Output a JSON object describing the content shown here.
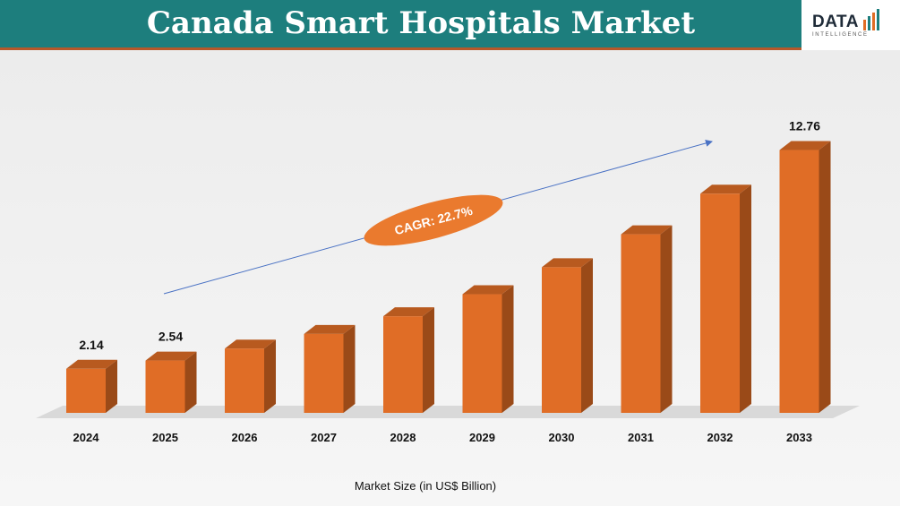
{
  "header": {
    "title": "Canada Smart Hospitals Market"
  },
  "logo": {
    "word": "DATA",
    "sub": "INTELLIGENCE"
  },
  "colors": {
    "header_bg": "#1d7e7d",
    "bar_front": "#e06d26",
    "bar_side": "#9a4a18",
    "bar_top": "#b85a1f",
    "badge": "#ea7a2e",
    "arrow": "#4a72c4"
  },
  "chart_data": {
    "type": "bar",
    "title": "",
    "xlabel": "Market Size (in US$ Billion)",
    "ylabel": "",
    "categories": [
      "2024",
      "2025",
      "2026",
      "2027",
      "2028",
      "2029",
      "2030",
      "2031",
      "2032",
      "2033"
    ],
    "values": [
      2.14,
      2.54,
      3.12,
      3.83,
      4.69,
      5.76,
      7.07,
      8.67,
      10.64,
      12.76
    ],
    "data_labels": {
      "2024": "2.14",
      "2025": "2.54",
      "2033": "12.76"
    },
    "annotation": "CAGR: 22.7%",
    "ylim": [
      0,
      13.5
    ],
    "grid": false,
    "legend": "none"
  }
}
